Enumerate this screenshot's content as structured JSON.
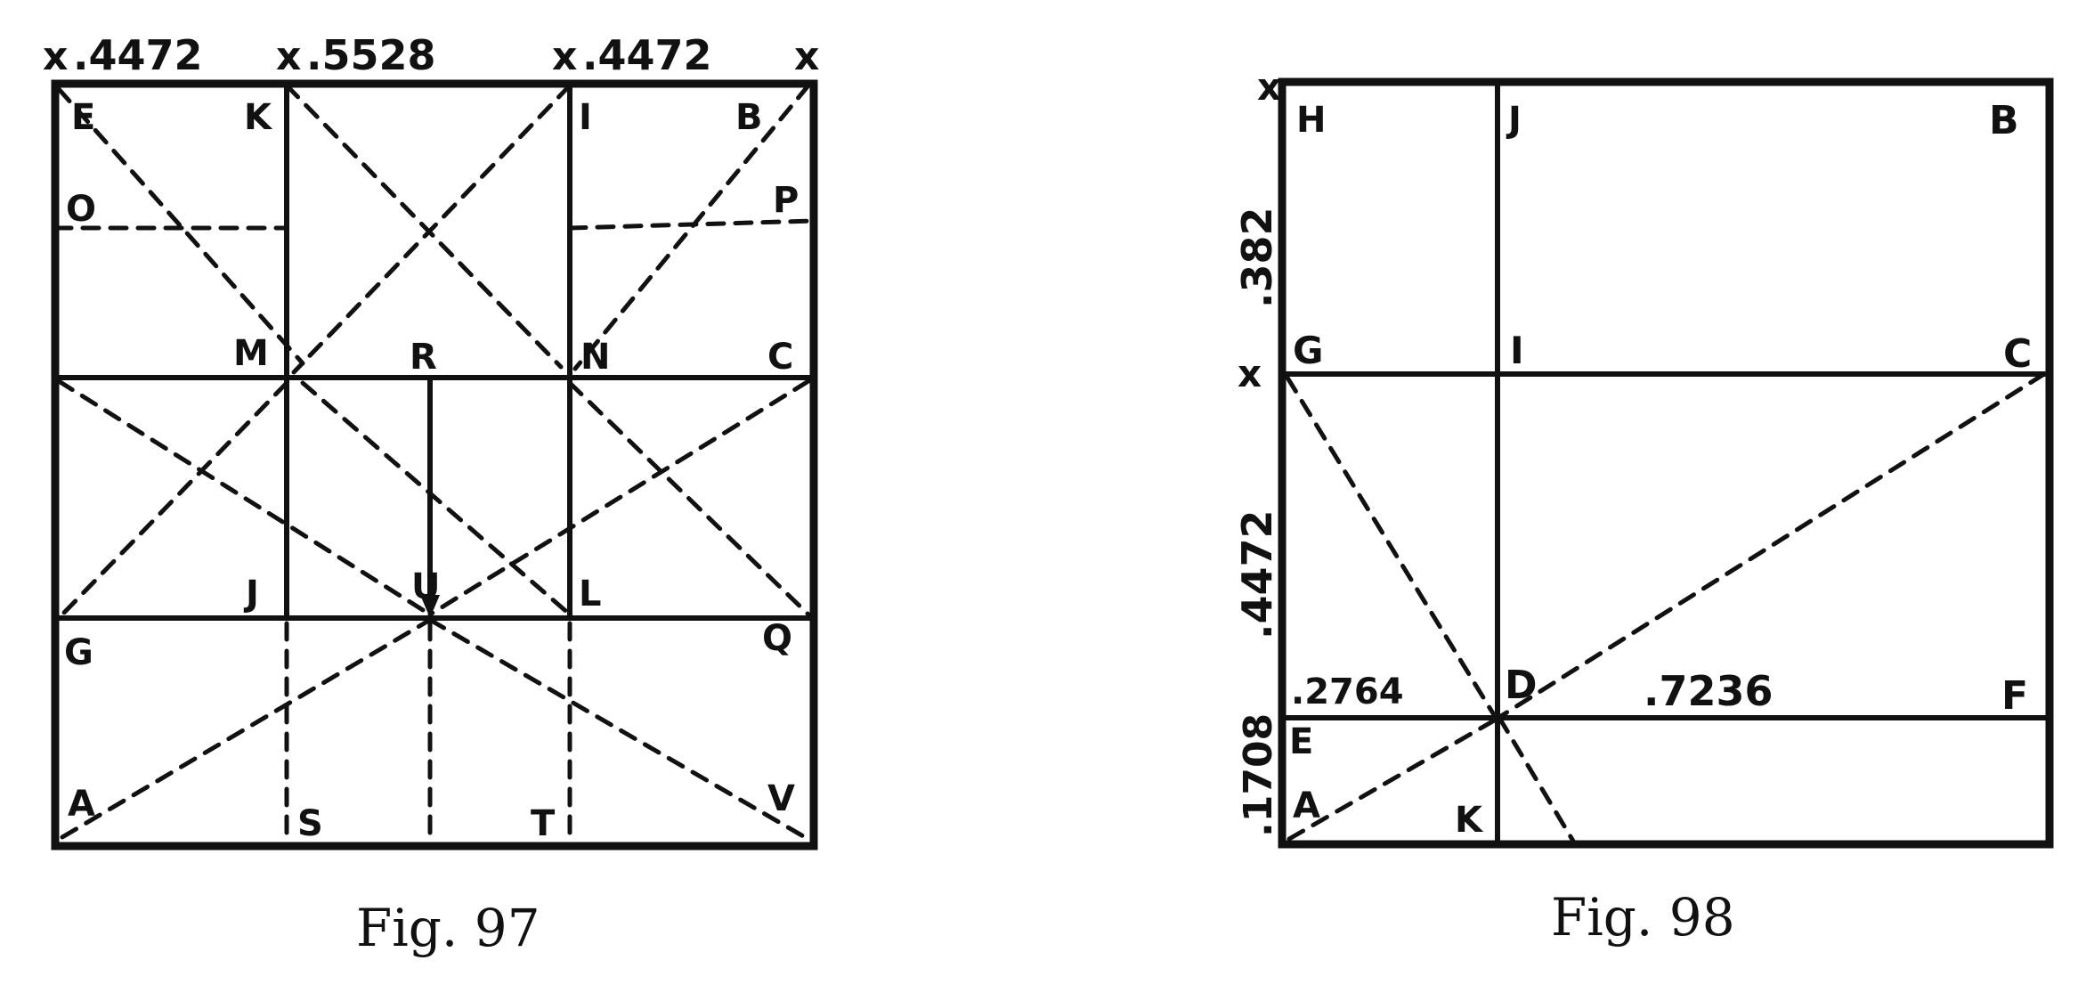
{
  "figures": [
    {
      "id": "fig97",
      "caption": "Fig. 97",
      "top_dims": [
        "x",
        ".4472",
        "x",
        ".5528",
        "x",
        ".4472",
        "x"
      ],
      "labels": {
        "E": "E",
        "K": "K",
        "I": "I",
        "B": "B",
        "O": "O",
        "P": "P",
        "M": "M",
        "R": "R",
        "N": "N",
        "C": "C",
        "J": "J",
        "U": "U",
        "L": "L",
        "G": "G",
        "Q": "Q",
        "A": "A",
        "S": "S",
        "T": "T",
        "V": "V"
      }
    },
    {
      "id": "fig98",
      "caption": "Fig. 98",
      "left_dims": [
        "x",
        ".382",
        "x",
        ".4472",
        ".1708"
      ],
      "labels": {
        "H": "H",
        "J": "J",
        "B": "B",
        "G": "G",
        "I": "I",
        "C": "C",
        "E": "E",
        "D": "D",
        "F": "F",
        "A": "A",
        "K": "K"
      },
      "inline_dims": [
        ".2764",
        ".7236"
      ]
    }
  ]
}
